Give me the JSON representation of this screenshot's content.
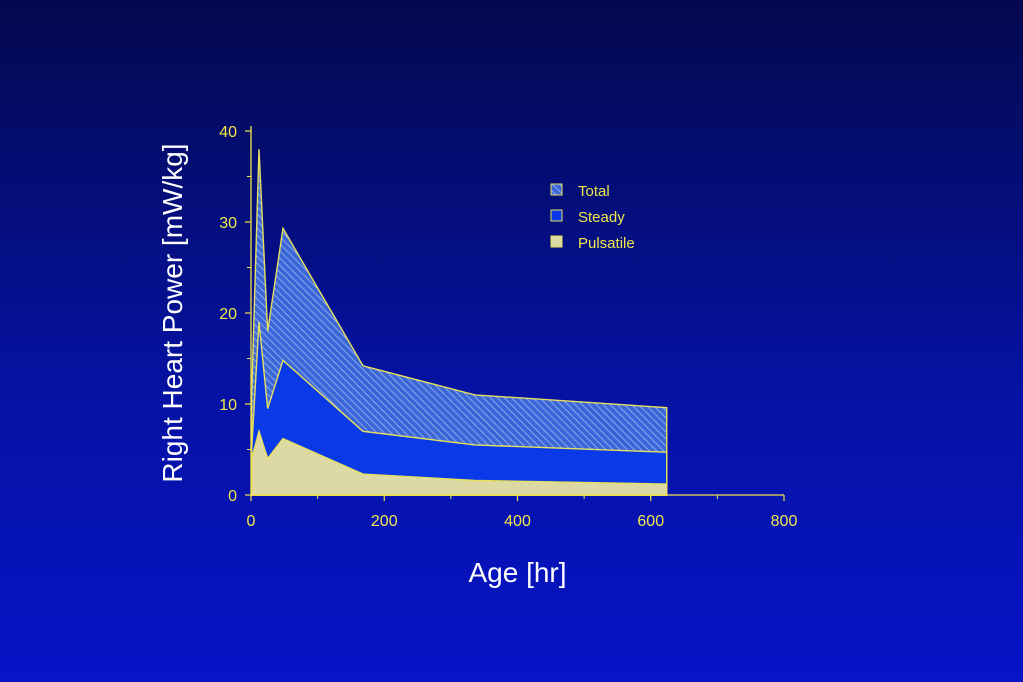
{
  "chart_data": {
    "type": "area",
    "xlabel": "Age [hr]",
    "ylabel": "Right Heart Power [mW/kg]",
    "xlim": [
      0,
      800
    ],
    "ylim": [
      0,
      40
    ],
    "x_ticks": [
      0,
      200,
      400,
      600,
      800
    ],
    "y_ticks": [
      0,
      10,
      20,
      30,
      40
    ],
    "legend_position": "top-right",
    "x": [
      1,
      12,
      25,
      48,
      168,
      336,
      624
    ],
    "series": [
      {
        "name": "Total",
        "values": [
          11,
          38,
          18,
          29.3,
          14.2,
          11,
          9.6
        ],
        "color": "#4a7ee8",
        "pattern": "hatched"
      },
      {
        "name": "Steady",
        "values": [
          5,
          19,
          9.5,
          14.8,
          7,
          5.5,
          4.7
        ],
        "color": "#0a3ae8",
        "pattern": "solid"
      },
      {
        "name": "Pulsatile",
        "values": [
          4,
          7,
          4,
          6.2,
          2.3,
          1.6,
          1.2
        ],
        "color": "#ddd9a4",
        "pattern": "solid"
      }
    ],
    "colors": {
      "axis": "#f2e64c",
      "outline": "#e7e05c",
      "title": "#ffffff"
    }
  }
}
